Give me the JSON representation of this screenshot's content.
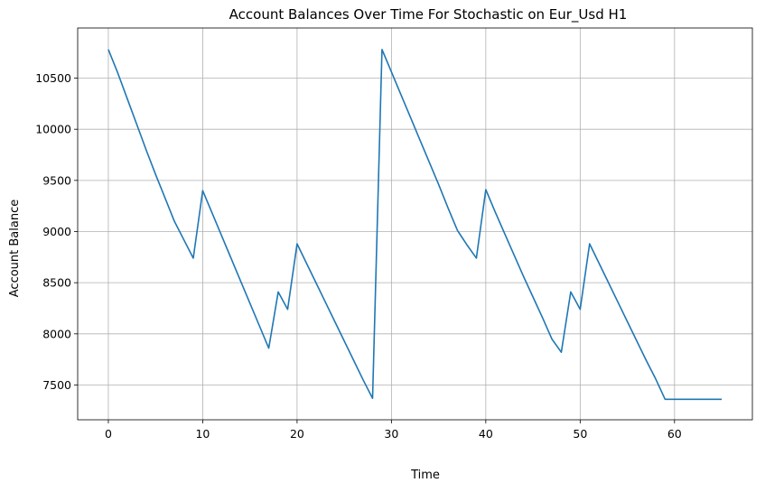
{
  "chart_data": {
    "type": "line",
    "title": "Account Balances Over Time For Stochastic on Eur_Usd H1",
    "xlabel": "Time",
    "ylabel": "Account Balance",
    "xlim": [
      -3.25,
      68.25
    ],
    "ylim": [
      7160,
      10990
    ],
    "xticks": [
      0,
      10,
      20,
      30,
      40,
      50,
      60
    ],
    "yticks": [
      7500,
      8000,
      8500,
      9000,
      9500,
      10000,
      10500
    ],
    "grid": true,
    "legend": "none",
    "series": [
      {
        "color": "#1f77b4",
        "x": [
          0,
          1,
          2,
          3,
          4,
          5,
          6,
          7,
          8,
          9,
          10,
          11,
          12,
          13,
          14,
          15,
          16,
          17,
          18,
          19,
          20,
          21,
          22,
          23,
          24,
          25,
          26,
          27,
          28,
          29,
          30,
          31,
          32,
          33,
          34,
          35,
          36,
          37,
          38,
          39,
          40,
          41,
          42,
          43,
          44,
          45,
          46,
          47,
          48,
          49,
          50,
          51,
          52,
          53,
          54,
          55,
          56,
          57,
          58,
          59,
          60,
          61,
          62,
          63,
          64,
          65
        ],
        "y": [
          10780,
          10550,
          10300,
          10050,
          9800,
          9560,
          9330,
          9100,
          8920,
          8740,
          9400,
          9180,
          8960,
          8740,
          8520,
          8300,
          8080,
          7860,
          8410,
          8240,
          8880,
          8690,
          8500,
          8310,
          8120,
          7930,
          7740,
          7550,
          7370,
          10780,
          10560,
          10340,
          10120,
          9900,
          9680,
          9460,
          9230,
          9010,
          8870,
          8740,
          9410,
          9190,
          8980,
          8770,
          8560,
          8360,
          8160,
          7950,
          7820,
          8410,
          8240,
          8880,
          8690,
          8500,
          8310,
          8120,
          7930,
          7740,
          7560,
          7360,
          7360,
          7360,
          7360,
          7360,
          7360,
          7360
        ]
      }
    ]
  }
}
